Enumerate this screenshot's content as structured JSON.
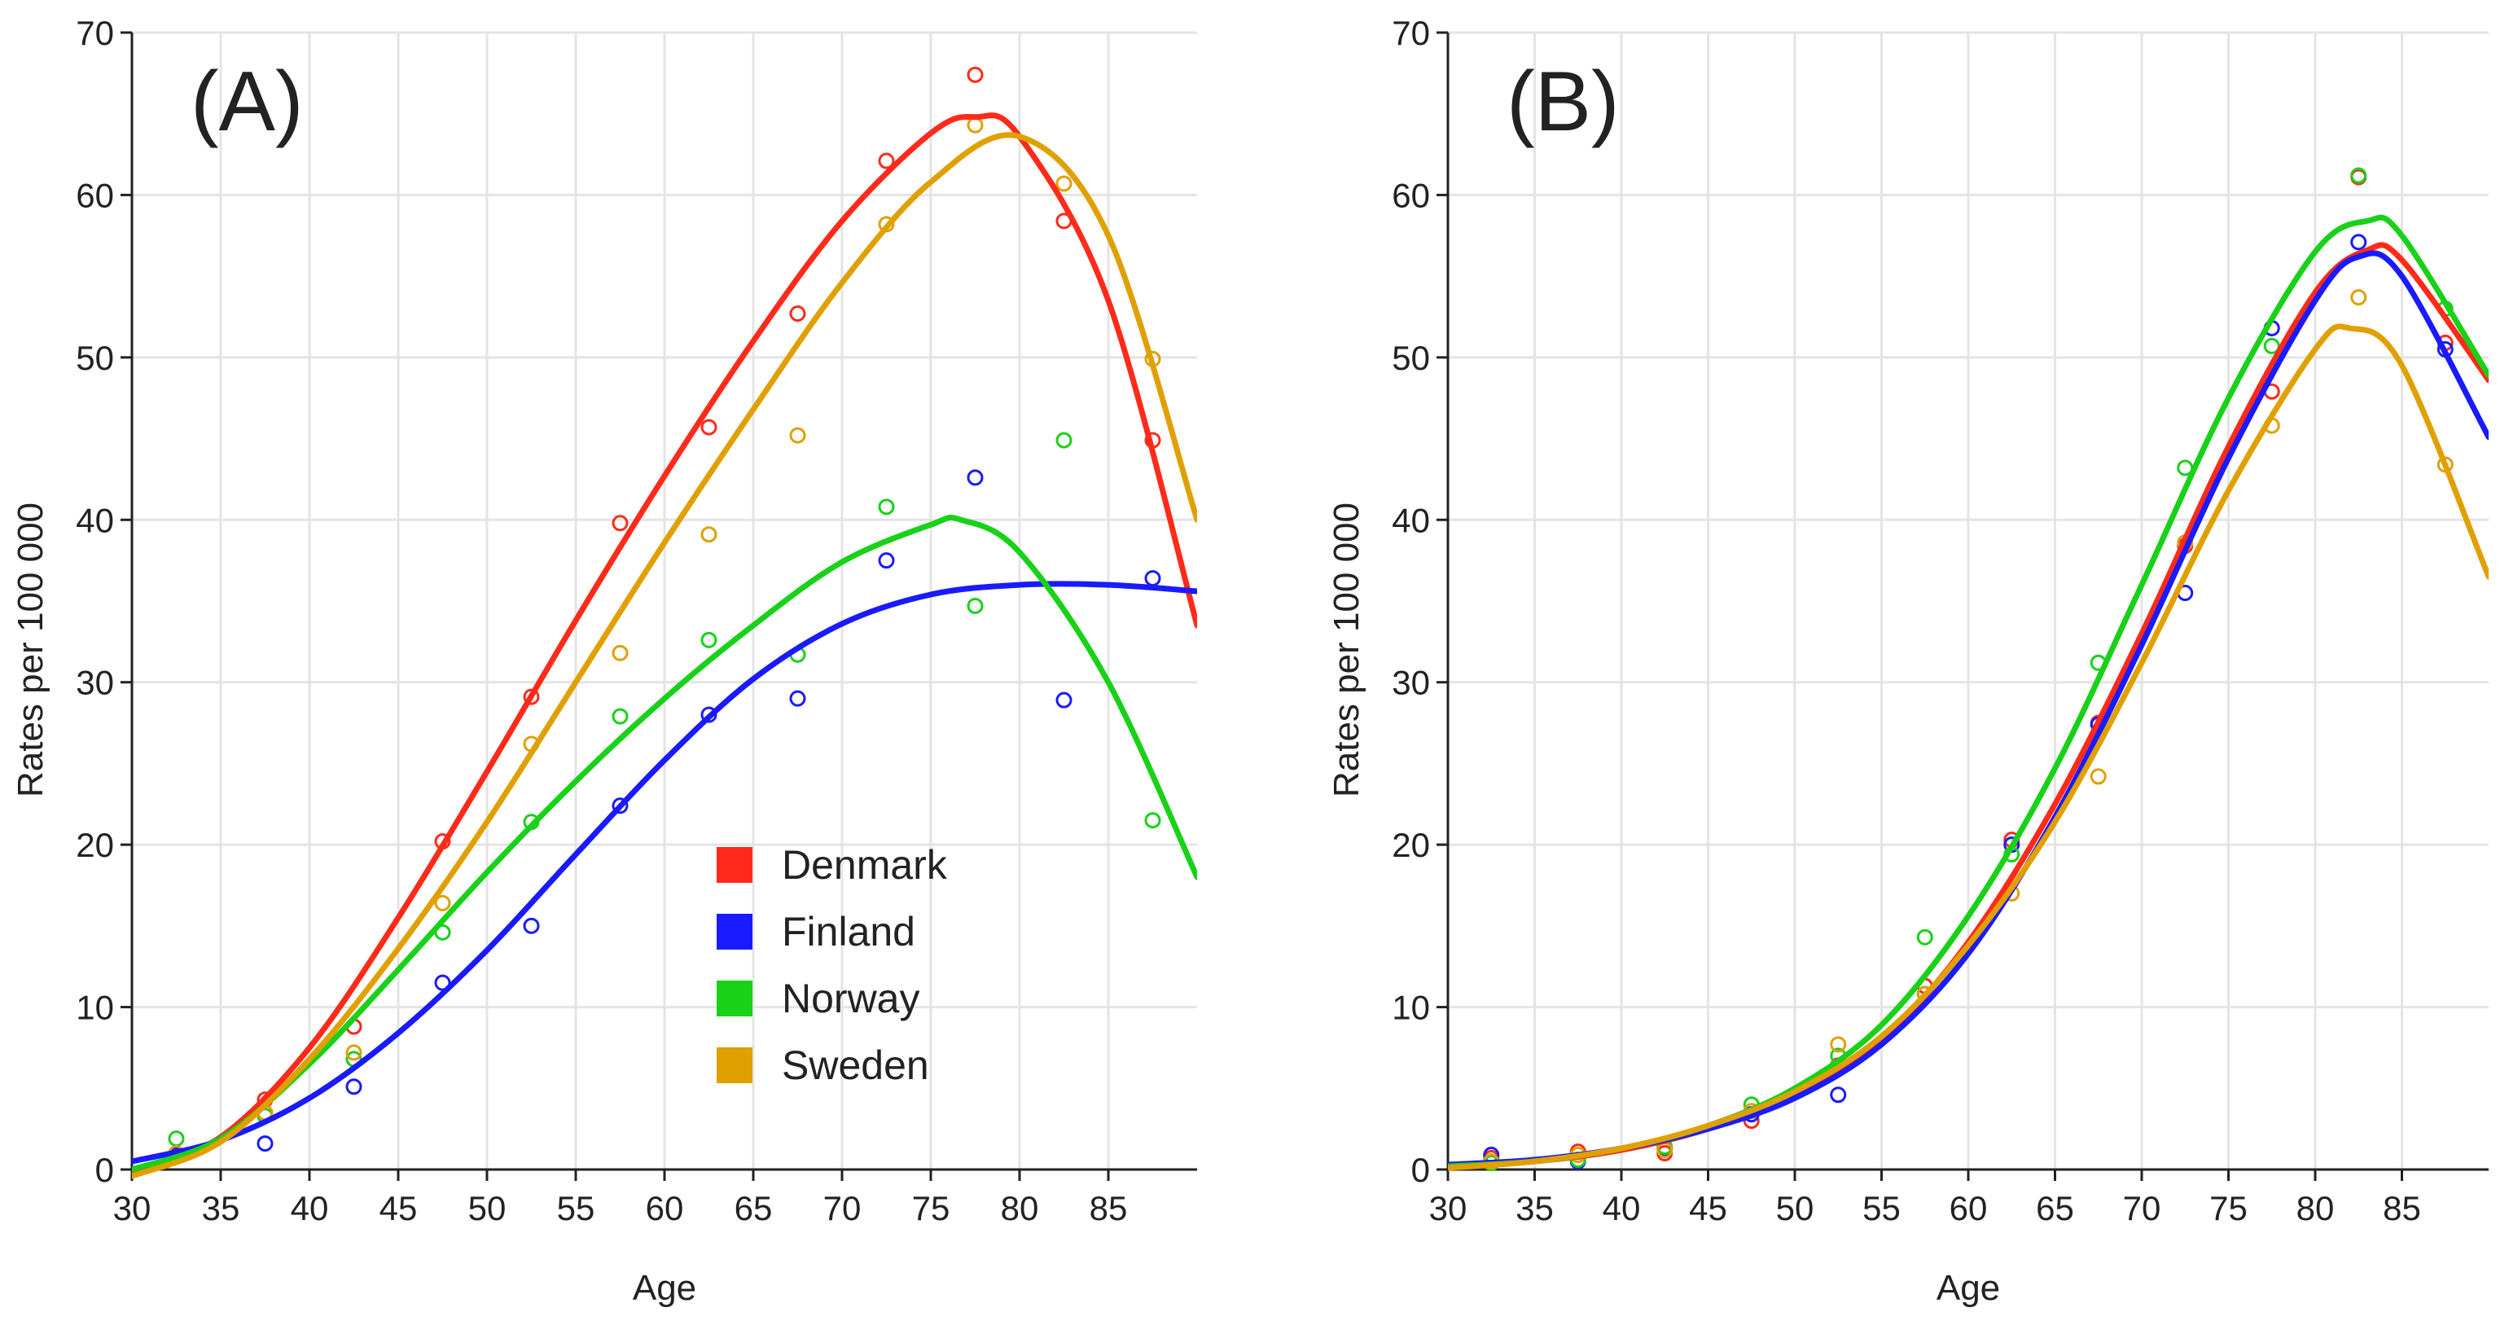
{
  "figure_title": "",
  "colors": {
    "Denmark": "#ff2a1a",
    "Finland": "#1a1aff",
    "Norway": "#19d119",
    "Sweden": "#e0a000"
  },
  "legend": [
    "Denmark",
    "Finland",
    "Norway",
    "Sweden"
  ],
  "chart_data": [
    {
      "type": "line",
      "panel_label": "(A)",
      "xlabel": "Age",
      "ylabel": "Rates per 100 000",
      "xlim": [
        30,
        90
      ],
      "ylim": [
        0,
        70
      ],
      "xticks": [
        "30",
        "35",
        "40",
        "45",
        "50",
        "55",
        "60",
        "65",
        "70",
        "75",
        "80",
        "85"
      ],
      "yticks": [
        "0",
        "10",
        "20",
        "30",
        "40",
        "50",
        "60",
        "70"
      ],
      "grid": true,
      "legend_position": "center-right",
      "series": [
        {
          "name": "Denmark",
          "points_x": [
            32.5,
            37.5,
            42.5,
            47.5,
            52.5,
            57.5,
            62.5,
            67.5,
            72.5,
            77.5,
            82.5,
            87.5
          ],
          "points_y": [
            0.8,
            4.3,
            8.8,
            20.2,
            29.1,
            39.8,
            45.7,
            52.7,
            62.1,
            67.4,
            58.4,
            44.9
          ],
          "fit_x": [
            30,
            35,
            40,
            45,
            50,
            55,
            60,
            65,
            70,
            75,
            77.5,
            80,
            85,
            90
          ],
          "fit_y": [
            -0.2,
            2.0,
            7.5,
            15.5,
            24.5,
            33.8,
            42.7,
            51.0,
            58.4,
            63.8,
            64.8,
            63.6,
            53.5,
            33.5
          ]
        },
        {
          "name": "Finland",
          "points_x": [
            32.5,
            37.5,
            42.5,
            47.5,
            52.5,
            57.5,
            62.5,
            67.5,
            72.5,
            77.5,
            82.5,
            87.5
          ],
          "points_y": [
            0.9,
            1.6,
            5.1,
            11.5,
            15.0,
            22.4,
            28.0,
            29.0,
            37.5,
            42.6,
            28.9,
            36.4
          ],
          "fit_x": [
            30,
            35,
            40,
            45,
            50,
            55,
            60,
            65,
            70,
            75,
            80,
            85,
            90
          ],
          "fit_y": [
            0.5,
            1.8,
            4.4,
            8.4,
            13.5,
            19.4,
            25.2,
            30.2,
            33.6,
            35.4,
            36.0,
            36.0,
            35.6
          ]
        },
        {
          "name": "Norway",
          "points_x": [
            32.5,
            37.5,
            42.5,
            47.5,
            52.5,
            57.5,
            62.5,
            67.5,
            72.5,
            77.5,
            82.5,
            87.5
          ],
          "points_y": [
            1.9,
            3.3,
            6.8,
            14.6,
            21.4,
            27.9,
            32.6,
            31.7,
            40.8,
            34.7,
            44.9,
            21.5
          ],
          "fit_x": [
            30,
            35,
            40,
            45,
            50,
            55,
            60,
            65,
            70,
            75,
            76.7,
            80,
            85,
            90
          ],
          "fit_y": [
            0.0,
            1.9,
            6.5,
            12.3,
            18.3,
            23.9,
            29.0,
            33.5,
            37.4,
            39.7,
            40.0,
            38.0,
            30.0,
            18.0
          ]
        },
        {
          "name": "Sweden",
          "points_x": [
            32.5,
            37.5,
            42.5,
            47.5,
            52.5,
            57.5,
            62.5,
            67.5,
            72.5,
            77.5,
            82.5,
            87.5
          ],
          "points_y": [
            1.0,
            3.5,
            7.2,
            16.4,
            26.2,
            31.8,
            39.1,
            45.2,
            58.2,
            64.3,
            60.7,
            49.9
          ],
          "fit_x": [
            30,
            35,
            40,
            45,
            50,
            55,
            60,
            65,
            70,
            75,
            80,
            85,
            90
          ],
          "fit_y": [
            -0.4,
            1.7,
            6.8,
            13.6,
            21.4,
            30.0,
            38.6,
            46.8,
            54.6,
            60.8,
            63.6,
            57.5,
            40.0
          ]
        }
      ]
    },
    {
      "type": "line",
      "panel_label": "(B)",
      "xlabel": "Age",
      "ylabel": "Rates per 100 000",
      "xlim": [
        30,
        90
      ],
      "ylim": [
        0,
        70
      ],
      "xticks": [
        "30",
        "35",
        "40",
        "45",
        "50",
        "55",
        "60",
        "65",
        "70",
        "75",
        "80",
        "85"
      ],
      "yticks": [
        "0",
        "10",
        "20",
        "30",
        "40",
        "50",
        "60",
        "70"
      ],
      "grid": true,
      "series": [
        {
          "name": "Denmark",
          "points_x": [
            32.5,
            37.5,
            42.5,
            47.5,
            52.5,
            57.5,
            62.5,
            67.5,
            72.5,
            77.5,
            82.5,
            87.5
          ],
          "points_y": [
            0.7,
            1.1,
            1.0,
            3.0,
            6.4,
            11.3,
            20.3,
            27.5,
            38.4,
            47.9,
            61.1,
            50.9
          ],
          "fit_x": [
            30,
            35,
            40,
            45,
            50,
            55,
            60,
            65,
            70,
            75,
            80,
            83,
            85,
            90
          ],
          "fit_y": [
            0.2,
            0.5,
            1.2,
            2.5,
            4.6,
            8.0,
            14.0,
            22.5,
            33.0,
            44.5,
            54.0,
            56.6,
            56.0,
            48.6
          ]
        },
        {
          "name": "Finland",
          "points_x": [
            32.5,
            37.5,
            42.5,
            47.5,
            52.5,
            57.5,
            62.5,
            67.5,
            72.5,
            77.5,
            82.5,
            87.5
          ],
          "points_y": [
            0.9,
            0.5,
            1.3,
            3.4,
            4.6,
            10.8,
            20.0,
            27.4,
            35.5,
            51.8,
            57.1,
            50.5
          ],
          "fit_x": [
            30,
            35,
            40,
            45,
            50,
            55,
            60,
            65,
            70,
            75,
            80,
            82.5,
            85,
            90
          ],
          "fit_y": [
            0.3,
            0.6,
            1.3,
            2.5,
            4.4,
            7.7,
            13.3,
            21.7,
            32.3,
            43.8,
            53.5,
            56.2,
            55.0,
            45.1
          ]
        },
        {
          "name": "Norway",
          "points_x": [
            32.5,
            37.5,
            42.5,
            47.5,
            52.5,
            57.5,
            62.5,
            67.5,
            72.5,
            77.5,
            82.5,
            87.5
          ],
          "points_y": [
            0.4,
            0.6,
            1.4,
            4.0,
            7.0,
            14.3,
            19.4,
            31.2,
            43.2,
            50.7,
            61.2,
            53.0
          ],
          "fit_x": [
            30,
            35,
            40,
            45,
            50,
            55,
            60,
            65,
            70,
            75,
            80,
            83,
            85,
            90
          ],
          "fit_y": [
            0.2,
            0.5,
            1.3,
            2.7,
            5.0,
            8.9,
            15.6,
            24.7,
            36.0,
            47.5,
            56.5,
            58.4,
            57.5,
            48.9
          ]
        },
        {
          "name": "Sweden",
          "points_x": [
            32.5,
            37.5,
            42.5,
            47.5,
            52.5,
            57.5,
            62.5,
            67.5,
            72.5,
            77.5,
            82.5,
            87.5
          ],
          "points_y": [
            0.5,
            0.9,
            1.2,
            3.6,
            7.7,
            10.8,
            17.0,
            24.2,
            38.6,
            45.8,
            53.7,
            43.4
          ],
          "fit_x": [
            30,
            35,
            40,
            45,
            50,
            55,
            60,
            65,
            70,
            75,
            80,
            82,
            85,
            90
          ],
          "fit_y": [
            0.1,
            0.5,
            1.3,
            2.7,
            4.8,
            8.2,
            13.8,
            21.4,
            31.2,
            41.8,
            50.5,
            51.8,
            49.5,
            36.5
          ]
        }
      ]
    }
  ]
}
